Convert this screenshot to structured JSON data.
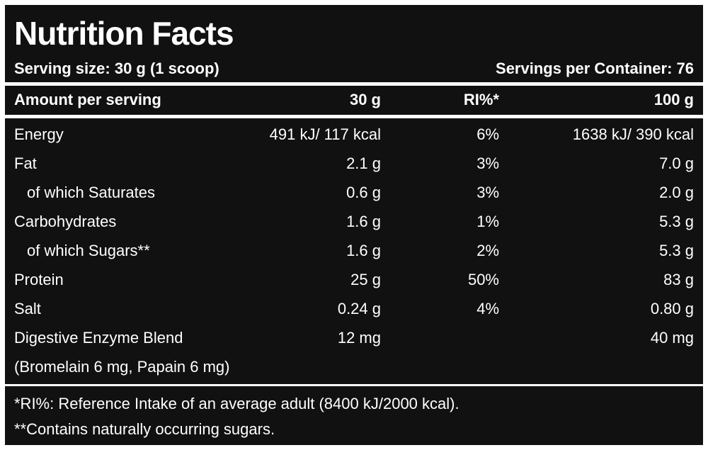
{
  "header": {
    "title": "Nutrition Facts",
    "serving_size": "Serving size: 30 g (1 scoop)",
    "servings_per_container": "Servings per Container: 76"
  },
  "table": {
    "columns": [
      "Amount per serving",
      "30 g",
      "RI%*",
      "100 g"
    ],
    "rows": [
      {
        "label": "Energy",
        "per_serving": "491 kJ/ 117 kcal",
        "ri": "6%",
        "per_100g": "1638 kJ/ 390 kcal"
      },
      {
        "label": "Fat",
        "per_serving": "2.1 g",
        "ri": "3%",
        "per_100g": "7.0 g"
      },
      {
        "label": "of which Saturates",
        "per_serving": "0.6 g",
        "ri": "3%",
        "per_100g": "2.0 g"
      },
      {
        "label": "Carbohydrates",
        "per_serving": "1.6 g",
        "ri": "1%",
        "per_100g": "5.3 g"
      },
      {
        "label": "of which Sugars**",
        "per_serving": "1.6 g",
        "ri": "2%",
        "per_100g": "5.3 g"
      },
      {
        "label": "Protein",
        "per_serving": "25 g",
        "ri": "50%",
        "per_100g": "83 g"
      },
      {
        "label": "Salt",
        "per_serving": "0.24 g",
        "ri": "4%",
        "per_100g": "0.80 g"
      },
      {
        "label": "Digestive Enzyme Blend",
        "per_serving": "12 mg",
        "per_100g": "40 mg",
        "note": "(Bromelain 6 mg, Papain 6 mg)"
      }
    ]
  },
  "footnotes": [
    "*RI%: Reference Intake of an average adult (8400 kJ/2000 kcal).",
    "**Contains naturally occurring sugars."
  ]
}
